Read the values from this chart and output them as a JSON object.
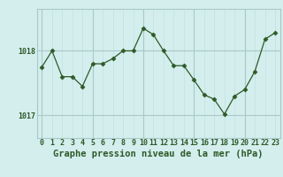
{
  "x": [
    0,
    1,
    2,
    3,
    4,
    5,
    6,
    7,
    8,
    9,
    10,
    11,
    12,
    13,
    14,
    15,
    16,
    17,
    18,
    19,
    20,
    21,
    22,
    23
  ],
  "y": [
    1017.75,
    1018.0,
    1017.6,
    1017.6,
    1017.45,
    1017.8,
    1017.8,
    1017.88,
    1018.0,
    1018.0,
    1018.35,
    1018.25,
    1018.0,
    1017.77,
    1017.77,
    1017.55,
    1017.32,
    1017.25,
    1017.02,
    1017.3,
    1017.4,
    1017.68,
    1018.18,
    1018.28
  ],
  "line_color": "#2d5a27",
  "marker": "D",
  "marker_size": 2.5,
  "bg_color": "#d4eeee",
  "grid_color_major": "#aac8c8",
  "grid_color_minor": "#c2e0e0",
  "xlabel": "Graphe pression niveau de la mer (hPa)",
  "xlabel_fontsize": 7.5,
  "ylabel_ticks": [
    1017,
    1018
  ],
  "xlim": [
    -0.5,
    23.5
  ],
  "ylim": [
    1016.65,
    1018.65
  ],
  "tick_color": "#2d5a27",
  "tick_fontsize": 6.0,
  "major_x_ticks": [
    0,
    5,
    10,
    15,
    20
  ]
}
